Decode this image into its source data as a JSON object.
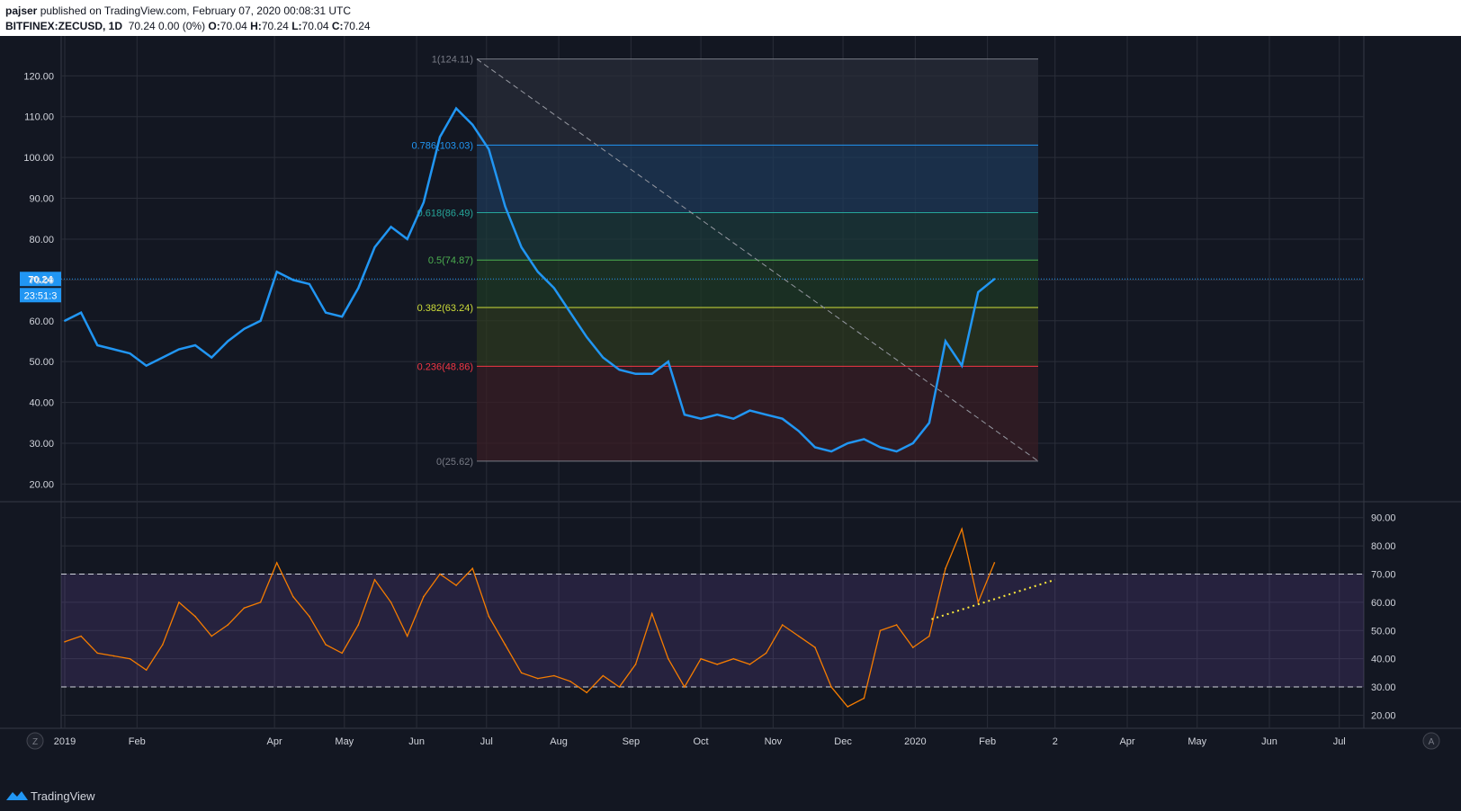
{
  "header": {
    "user": "pajser",
    "published": "published on TradingView.com, February 07, 2020 00:08:31 UTC",
    "symbol": "BITFINEX:ZECUSD, 1D",
    "price_line": "70.24 0.00 (0%)",
    "o_label": "O:",
    "o": "70.04",
    "h_label": "H:",
    "h": "70.24",
    "l_label": "L:",
    "l": "70.04",
    "c_label": "C:",
    "c": "70.24"
  },
  "price_badge": {
    "price": "70.24",
    "countdown": "23:51:3"
  },
  "footer": {
    "brand": "TradingView"
  },
  "buttons": {
    "left": "Z",
    "right": "A"
  },
  "colors": {
    "background": "#131722",
    "grid": "#2a2e39",
    "price_line": "#2196f3",
    "rsi_line": "#f57c00",
    "rsi_band": "#7e57c2",
    "trendline": "#ffeb3b"
  },
  "chart_data": [
    {
      "type": "line",
      "title": "",
      "ylim": [
        17,
        128
      ],
      "y_ticks": [
        "120.00",
        "110.00",
        "100.00",
        "90.00",
        "80.00",
        "70.00",
        "60.00",
        "50.00",
        "40.00",
        "30.00",
        "20.00"
      ],
      "x_tick_labels": [
        "2019",
        "Feb",
        "Apr",
        "May",
        "Jun",
        "Jul",
        "Aug",
        "Sep",
        "Oct",
        "Nov",
        "Dec",
        "2020",
        "Feb",
        "2",
        "Apr",
        "May",
        "Jun",
        "Jul"
      ],
      "series": [
        {
          "x": [
            "2019-01-01",
            "2019-01-08",
            "2019-01-15",
            "2019-01-22",
            "2019-01-29",
            "2019-02-05",
            "2019-02-12",
            "2019-02-19",
            "2019-02-26",
            "2019-03-05",
            "2019-03-12",
            "2019-03-19",
            "2019-03-26",
            "2019-04-02",
            "2019-04-09",
            "2019-04-16",
            "2019-04-23",
            "2019-04-30",
            "2019-05-07",
            "2019-05-14",
            "2019-05-21",
            "2019-05-28",
            "2019-06-04",
            "2019-06-11",
            "2019-06-18",
            "2019-06-25",
            "2019-07-02",
            "2019-07-09",
            "2019-07-16",
            "2019-07-23",
            "2019-07-30",
            "2019-08-06",
            "2019-08-13",
            "2019-08-20",
            "2019-08-27",
            "2019-09-03",
            "2019-09-10",
            "2019-09-17",
            "2019-09-24",
            "2019-10-01",
            "2019-10-08",
            "2019-10-15",
            "2019-10-22",
            "2019-10-29",
            "2019-11-05",
            "2019-11-12",
            "2019-11-19",
            "2019-11-26",
            "2019-12-03",
            "2019-12-10",
            "2019-12-17",
            "2019-12-24",
            "2019-12-31",
            "2020-01-07",
            "2020-01-14",
            "2020-01-21",
            "2020-01-28",
            "2020-02-04"
          ],
          "values": [
            60,
            62,
            54,
            53,
            52,
            49,
            51,
            53,
            54,
            51,
            55,
            58,
            60,
            72,
            70,
            69,
            62,
            61,
            68,
            78,
            83,
            80,
            89,
            105,
            112,
            108,
            102,
            88,
            78,
            72,
            68,
            62,
            56,
            51,
            48,
            47,
            47,
            50,
            37,
            36,
            37,
            36,
            38,
            37,
            36,
            33,
            29,
            28,
            30,
            31,
            29,
            28,
            30,
            35,
            55,
            49,
            67,
            70.24
          ]
        }
      ],
      "fib_levels": [
        {
          "label": "1(124.11)",
          "value": 124.11,
          "color": "#787b86"
        },
        {
          "label": "0.786(103.03)",
          "value": 103.03,
          "color": "#2196f3"
        },
        {
          "label": "0.618(86.49)",
          "value": 86.49,
          "color": "#26a69a"
        },
        {
          "label": "0.5(74.87)",
          "value": 74.87,
          "color": "#4caf50"
        },
        {
          "label": "0.382(63.24)",
          "value": 63.24,
          "color": "#cddc39"
        },
        {
          "label": "0.236(48.86)",
          "value": 48.86,
          "color": "#f23645"
        },
        {
          "label": "0(25.62)",
          "value": 25.62,
          "color": "#787b86"
        }
      ]
    },
    {
      "type": "line",
      "title": "",
      "ylim": [
        16,
        95
      ],
      "y_ticks": [
        "90.00",
        "80.00",
        "70.00",
        "60.00",
        "50.00",
        "40.00",
        "30.00",
        "20.00"
      ],
      "band": [
        30,
        70
      ],
      "series": [
        {
          "x": [
            "2019-01-01",
            "2019-01-08",
            "2019-01-15",
            "2019-01-22",
            "2019-01-29",
            "2019-02-05",
            "2019-02-12",
            "2019-02-19",
            "2019-02-26",
            "2019-03-05",
            "2019-03-12",
            "2019-03-19",
            "2019-03-26",
            "2019-04-02",
            "2019-04-09",
            "2019-04-16",
            "2019-04-23",
            "2019-04-30",
            "2019-05-07",
            "2019-05-14",
            "2019-05-21",
            "2019-05-28",
            "2019-06-04",
            "2019-06-11",
            "2019-06-18",
            "2019-06-25",
            "2019-07-02",
            "2019-07-09",
            "2019-07-16",
            "2019-07-23",
            "2019-07-30",
            "2019-08-06",
            "2019-08-13",
            "2019-08-20",
            "2019-08-27",
            "2019-09-03",
            "2019-09-10",
            "2019-09-17",
            "2019-09-24",
            "2019-10-01",
            "2019-10-08",
            "2019-10-15",
            "2019-10-22",
            "2019-10-29",
            "2019-11-05",
            "2019-11-12",
            "2019-11-19",
            "2019-11-26",
            "2019-12-03",
            "2019-12-10",
            "2019-12-17",
            "2019-12-24",
            "2019-12-31",
            "2020-01-07",
            "2020-01-14",
            "2020-01-21",
            "2020-01-28",
            "2020-02-04"
          ],
          "values": [
            46,
            48,
            42,
            41,
            40,
            36,
            45,
            60,
            55,
            48,
            52,
            58,
            60,
            74,
            62,
            55,
            45,
            42,
            52,
            68,
            60,
            48,
            62,
            70,
            66,
            72,
            55,
            45,
            35,
            33,
            34,
            32,
            28,
            34,
            30,
            38,
            56,
            40,
            30,
            40,
            38,
            40,
            38,
            42,
            52,
            48,
            44,
            30,
            23,
            26,
            50,
            52,
            44,
            48,
            72,
            86,
            60,
            74
          ]
        }
      ],
      "trendline": {
        "from": [
          "2020-01-08",
          54
        ],
        "to": [
          "2020-03-01",
          68
        ]
      }
    }
  ]
}
